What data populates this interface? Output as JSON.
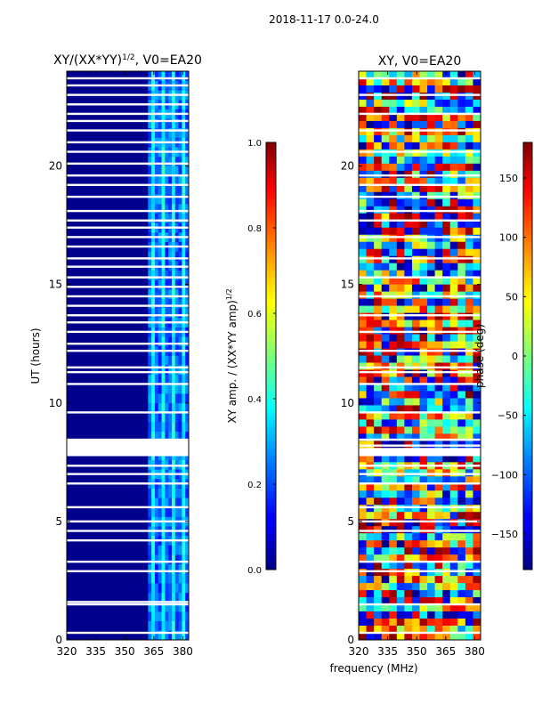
{
  "figure": {
    "suptitle": "2018-11-17 0.0-24.0",
    "shared_xlabel": "frequency (MHz)"
  },
  "chart_data": [
    {
      "type": "heatmap",
      "title_main": "XY/(XX*YY)",
      "title_sup": "1/2",
      "title_tail": ", V0=EA20",
      "ylabel": "UT (hours)",
      "xlim": [
        320,
        383
      ],
      "ylim": [
        0,
        24
      ],
      "xticks": [
        320,
        335,
        350,
        365,
        380
      ],
      "yticks": [
        0,
        5,
        10,
        15,
        20
      ],
      "colorbar": {
        "label": "XY amp. / (XX*YY amp)",
        "label_sup": "1/2",
        "range": [
          0.0,
          1.0
        ],
        "ticks": [
          "0.0",
          "0.2",
          "0.4",
          "0.6",
          "0.8",
          "1.0"
        ],
        "colormap": "jet"
      },
      "bright_band_mhz": [
        362,
        383
      ],
      "gap_hours": [
        0.3,
        1.5,
        1.6,
        2.9,
        3.3,
        4.2,
        4.6,
        5.0,
        5.6,
        6.6,
        7.0,
        7.35,
        7.8,
        8.0,
        8.2,
        8.45,
        9.6,
        10.8,
        11.3,
        11.5,
        12.2,
        12.5,
        13.0,
        13.4,
        13.7,
        14.1,
        14.5,
        14.9,
        15.3,
        15.75,
        16.1,
        16.6,
        17.0,
        17.4,
        17.7,
        18.1,
        18.7,
        19.2,
        19.6,
        20.1,
        20.6,
        21.0,
        21.5,
        21.9,
        22.2,
        22.6,
        23.0,
        23.4,
        23.7
      ]
    },
    {
      "type": "heatmap",
      "title": "XY, V0=EA20",
      "xlim": [
        320,
        383
      ],
      "ylim": [
        0,
        24
      ],
      "xticks": [
        320,
        335,
        350,
        365,
        380
      ],
      "yticks": [
        0,
        5,
        10,
        15,
        20
      ],
      "colorbar": {
        "label": "phase (deg)",
        "range": [
          -180,
          180
        ],
        "ticks": [
          "150",
          "100",
          "50",
          "0",
          "−50",
          "−100",
          "−150"
        ],
        "tick_values": [
          150,
          100,
          50,
          0,
          -50,
          -100,
          -150
        ],
        "colormap": "jet"
      },
      "gap_hours": [
        0.3,
        1.5,
        2.9,
        3.3,
        4.6,
        5.0,
        5.6,
        6.6,
        7.0,
        7.35,
        7.8,
        8.0,
        8.2,
        8.45,
        9.6,
        10.8,
        11.3,
        11.5,
        12.2,
        13.0,
        13.7,
        14.5,
        15.3,
        16.1,
        17.0,
        17.7,
        18.1,
        18.7,
        19.2,
        19.6,
        20.6,
        21.5,
        22.2,
        23.0,
        23.7
      ]
    }
  ]
}
